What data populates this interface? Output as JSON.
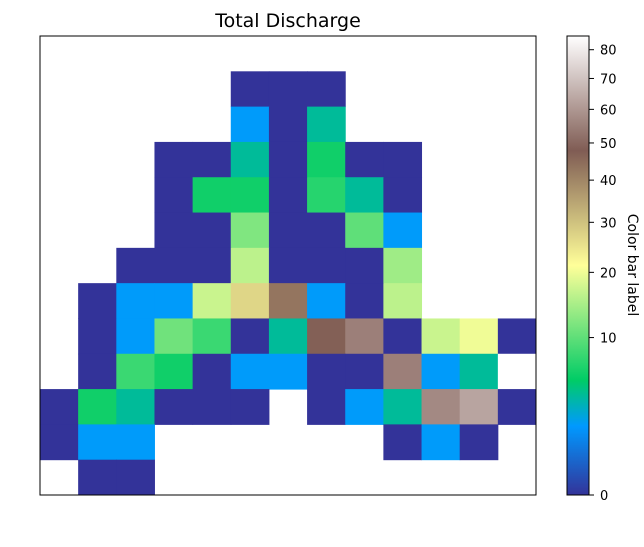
{
  "chart_data": {
    "type": "heatmap",
    "title": "Total Discharge",
    "colorbar": {
      "label": "Color bar label",
      "scale": "sqrt",
      "range": [
        0,
        85
      ],
      "ticks": [
        0,
        10,
        20,
        30,
        40,
        50,
        60,
        70,
        80
      ],
      "colormap": "terrain"
    },
    "axes": {
      "x_ticks": false,
      "y_ticks": false,
      "grid": false
    },
    "rows": 13,
    "cols": 13,
    "grid": [
      [
        null,
        null,
        null,
        null,
        null,
        null,
        null,
        null,
        null,
        null,
        null,
        null,
        null
      ],
      [
        null,
        null,
        null,
        null,
        null,
        0,
        0,
        0,
        null,
        null,
        null,
        null,
        null
      ],
      [
        null,
        null,
        null,
        null,
        null,
        2,
        0,
        4,
        null,
        null,
        null,
        null,
        null
      ],
      [
        null,
        null,
        null,
        0,
        0,
        4,
        0,
        6,
        0,
        0,
        null,
        null,
        null
      ],
      [
        null,
        null,
        null,
        0,
        6,
        6,
        0,
        7,
        4,
        0,
        null,
        null,
        null
      ],
      [
        null,
        null,
        null,
        0,
        0,
        12,
        0,
        0,
        10,
        2,
        null,
        null,
        null
      ],
      [
        null,
        null,
        0,
        0,
        0,
        16,
        0,
        0,
        0,
        14,
        null,
        null,
        null
      ],
      [
        null,
        0,
        2,
        2,
        17,
        27,
        43,
        2,
        0,
        16,
        null,
        null,
        null
      ],
      [
        null,
        0,
        2,
        11,
        8,
        0,
        4,
        47,
        55,
        0,
        17,
        20,
        0
      ],
      [
        null,
        0,
        8,
        6,
        0,
        2,
        2,
        0,
        0,
        55,
        2,
        4,
        85
      ],
      [
        0,
        6,
        4,
        0,
        0,
        0,
        null,
        0,
        2,
        4,
        57,
        63,
        0
      ],
      [
        0,
        2,
        2,
        null,
        null,
        null,
        null,
        null,
        null,
        0,
        2,
        0,
        null
      ],
      [
        null,
        0,
        0,
        null,
        null,
        null,
        null,
        null,
        null,
        null,
        null,
        null,
        null
      ]
    ]
  }
}
